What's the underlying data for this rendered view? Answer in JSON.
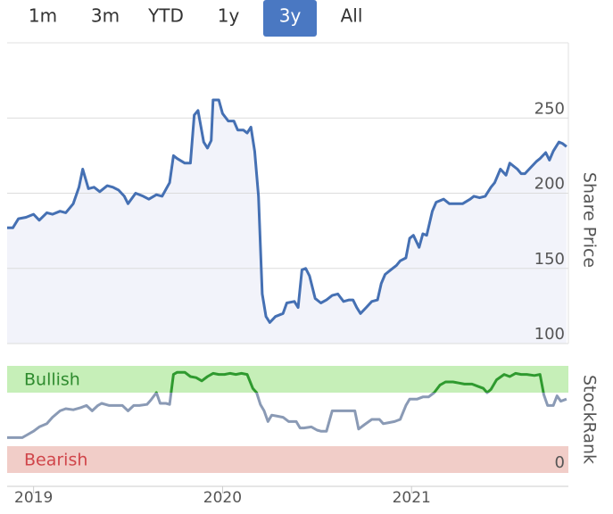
{
  "range_selector": {
    "options": [
      "1m",
      "3m",
      "YTD",
      "1y",
      "3y",
      "All"
    ],
    "selected_index": 4
  },
  "chart_data": [
    {
      "type": "area-line",
      "y_label": "Share Price",
      "color": "#4570b3",
      "fill": "#f2f3fa",
      "grid": true,
      "xlim": [
        2018.86,
        2021.83
      ],
      "ylim": [
        100,
        300
      ],
      "yticks": [
        100,
        150,
        200,
        250
      ],
      "x": [
        2018.86,
        2018.89,
        2018.92,
        2018.96,
        2019.0,
        2019.03,
        2019.07,
        2019.1,
        2019.14,
        2019.17,
        2019.21,
        2019.24,
        2019.26,
        2019.29,
        2019.32,
        2019.35,
        2019.39,
        2019.42,
        2019.45,
        2019.48,
        2019.5,
        2019.54,
        2019.58,
        2019.61,
        2019.65,
        2019.68,
        2019.72,
        2019.74,
        2019.76,
        2019.8,
        2019.83,
        2019.85,
        2019.87,
        2019.9,
        2019.92,
        2019.94,
        2019.95,
        2019.98,
        2020.0,
        2020.03,
        2020.06,
        2020.08,
        2020.11,
        2020.13,
        2020.15,
        2020.17,
        2020.19,
        2020.21,
        2020.23,
        2020.25,
        2020.28,
        2020.32,
        2020.34,
        2020.38,
        2020.4,
        2020.42,
        2020.44,
        2020.46,
        2020.49,
        2020.52,
        2020.55,
        2020.58,
        2020.61,
        2020.64,
        2020.67,
        2020.69,
        2020.71,
        2020.73,
        2020.76,
        2020.79,
        2020.82,
        2020.84,
        2020.86,
        2020.89,
        2020.92,
        2020.94,
        2020.97,
        2020.99,
        2021.01,
        2021.04,
        2021.06,
        2021.08,
        2021.11,
        2021.13,
        2021.17,
        2021.2,
        2021.24,
        2021.27,
        2021.31,
        2021.33,
        2021.36,
        2021.39,
        2021.42,
        2021.44,
        2021.47,
        2021.5,
        2021.52,
        2021.56,
        2021.58,
        2021.6,
        2021.63,
        2021.66,
        2021.68,
        2021.71,
        2021.73,
        2021.75,
        2021.78,
        2021.8,
        2021.82
      ],
      "values": [
        177,
        177,
        183,
        184,
        186,
        182,
        187,
        186,
        188,
        187,
        193,
        204,
        216,
        203,
        204,
        201,
        205,
        204,
        202,
        198,
        193,
        200,
        198,
        196,
        199,
        198,
        207,
        225,
        223,
        220,
        220,
        252,
        255,
        234,
        230,
        235,
        262,
        262,
        253,
        248,
        248,
        242,
        242,
        240,
        244,
        228,
        198,
        133,
        118,
        114,
        118,
        120,
        127,
        128,
        124,
        149,
        150,
        145,
        130,
        127,
        129,
        132,
        133,
        128,
        129,
        129,
        124,
        120,
        124,
        128,
        129,
        140,
        146,
        149,
        152,
        155,
        157,
        170,
        172,
        164,
        173,
        172,
        188,
        194,
        196,
        193,
        193,
        193,
        196,
        198,
        197,
        198,
        204,
        207,
        216,
        212,
        220,
        216,
        213,
        213,
        217,
        221,
        223,
        227,
        222,
        228,
        234,
        233,
        231
      ]
    },
    {
      "type": "band-line",
      "y_label": "StockRank",
      "color": "#8a9ab5",
      "grid": false,
      "bands": [
        {
          "label": "Bullish",
          "from": 75,
          "to": 100,
          "color": "#c6efb8",
          "text_color": "#2e8b2e",
          "line_color": "#2f9a2f"
        },
        {
          "label": "Bearish",
          "from": 0,
          "to": 25,
          "color": "#f1cdc8",
          "text_color": "#d0454a"
        }
      ],
      "xlim": [
        2018.86,
        2021.83
      ],
      "xticks": [
        2019,
        2020,
        2021
      ],
      "ylim": [
        0,
        100
      ],
      "yticks": [
        0
      ],
      "x": [
        2018.86,
        2018.94,
        2018.96,
        2019.0,
        2019.03,
        2019.07,
        2019.1,
        2019.14,
        2019.17,
        2019.21,
        2019.25,
        2019.28,
        2019.31,
        2019.34,
        2019.36,
        2019.4,
        2019.43,
        2019.47,
        2019.5,
        2019.53,
        2019.56,
        2019.6,
        2019.62,
        2019.65,
        2019.67,
        2019.7,
        2019.72,
        2019.74,
        2019.76,
        2019.8,
        2019.83,
        2019.86,
        2019.89,
        2019.92,
        2019.95,
        2019.98,
        2020.01,
        2020.04,
        2020.07,
        2020.1,
        2020.13,
        2020.16,
        2020.18,
        2020.2,
        2020.22,
        2020.24,
        2020.26,
        2020.29,
        2020.32,
        2020.35,
        2020.39,
        2020.41,
        2020.43,
        2020.47,
        2020.5,
        2020.52,
        2020.55,
        2020.58,
        2020.61,
        2020.66,
        2020.7,
        2020.72,
        2020.75,
        2020.79,
        2020.83,
        2020.85,
        2020.88,
        2020.91,
        2020.94,
        2020.97,
        2020.99,
        2021.03,
        2021.06,
        2021.09,
        2021.12,
        2021.15,
        2021.18,
        2021.22,
        2021.25,
        2021.28,
        2021.32,
        2021.35,
        2021.38,
        2021.4,
        2021.42,
        2021.45,
        2021.49,
        2021.52,
        2021.55,
        2021.58,
        2021.61,
        2021.65,
        2021.68,
        2021.7,
        2021.72,
        2021.75,
        2021.77,
        2021.79,
        2021.82
      ],
      "values": [
        33,
        33,
        35,
        39,
        43,
        46,
        52,
        58,
        60,
        59,
        61,
        63,
        58,
        63,
        65,
        63,
        63,
        63,
        58,
        63,
        63,
        64,
        68,
        75,
        65,
        65,
        64,
        92,
        94,
        94,
        90,
        89,
        86,
        90,
        93,
        92,
        92,
        93,
        92,
        93,
        92,
        79,
        75,
        64,
        58,
        48,
        54,
        53,
        52,
        48,
        48,
        42,
        42,
        43,
        40,
        39,
        39,
        58,
        58,
        58,
        58,
        41,
        45,
        50,
        50,
        46,
        47,
        48,
        50,
        63,
        69,
        69,
        71,
        71,
        75,
        82,
        85,
        85,
        84,
        83,
        83,
        81,
        79,
        75,
        78,
        87,
        92,
        90,
        93,
        92,
        92,
        91,
        92,
        73,
        63,
        63,
        72,
        67,
        69
      ]
    }
  ]
}
